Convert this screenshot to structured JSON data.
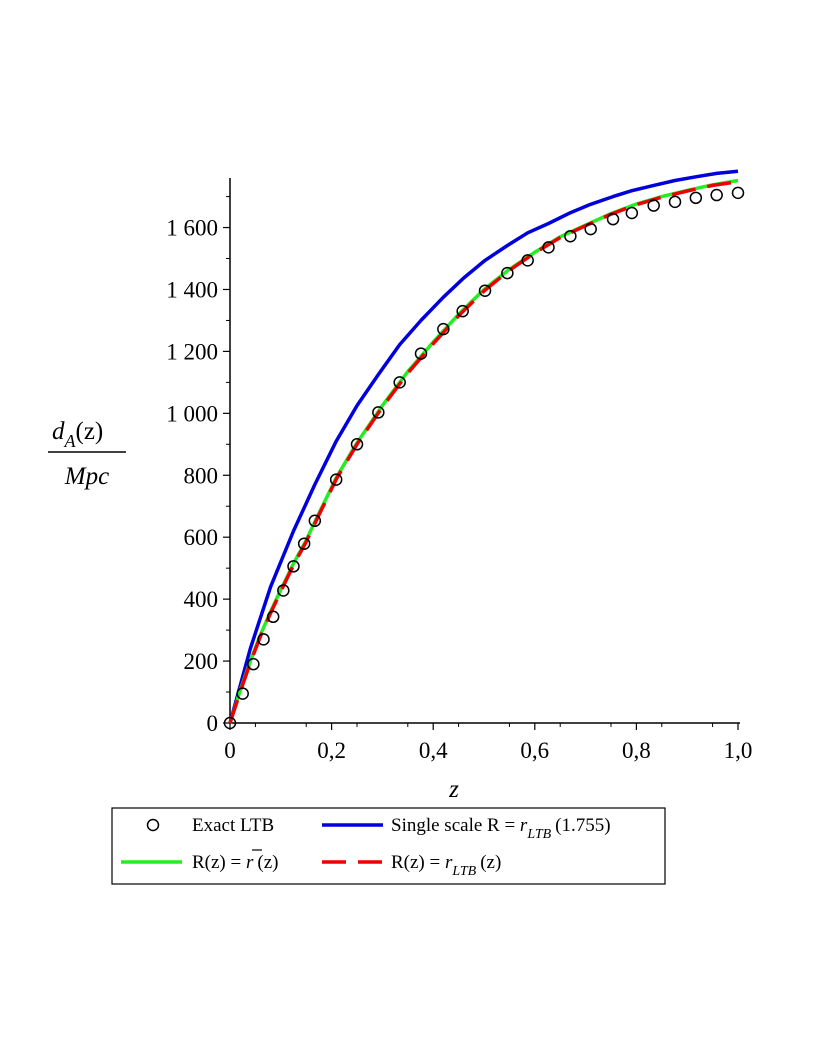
{
  "chart_data": {
    "type": "line",
    "xlabel": "z",
    "ylabel_numerator": "d",
    "ylabel_numerator_sub": "A",
    "ylabel_numerator_arg": "(z)",
    "ylabel_denominator": "Mpc",
    "xlim": [
      0,
      1.0
    ],
    "ylim": [
      0,
      1760
    ],
    "x_ticks": [
      0,
      0.2,
      0.4,
      0.6,
      0.8,
      1.0
    ],
    "x_tick_labels": [
      "0",
      "0,2",
      "0,4",
      "0,6",
      "0,8",
      "1,0"
    ],
    "y_ticks": [
      0,
      200,
      400,
      600,
      800,
      1000,
      1200,
      1400,
      1600
    ],
    "y_tick_labels": [
      "0",
      "200",
      "400",
      "600",
      "800",
      "1 000",
      "1 200",
      "1 400",
      "1 600"
    ],
    "grid": false,
    "legend_position": "bottom",
    "series": [
      {
        "name": "Exact LTB",
        "style": "circles",
        "color": "#000000",
        "x": [
          0.0,
          0.025,
          0.046,
          0.066,
          0.085,
          0.105,
          0.125,
          0.146,
          0.167,
          0.209,
          0.25,
          0.292,
          0.334,
          0.376,
          0.42,
          0.458,
          0.502,
          0.546,
          0.586,
          0.627,
          0.67,
          0.71,
          0.754,
          0.791,
          0.834,
          0.876,
          0.917,
          0.958,
          1.0
        ],
        "y": [
          0,
          95,
          190,
          270,
          343,
          428,
          506,
          579,
          653,
          786,
          900,
          1003,
          1100,
          1193,
          1272,
          1330,
          1396,
          1453,
          1494,
          1536,
          1572,
          1595,
          1627,
          1647,
          1671,
          1683,
          1696,
          1705,
          1712
        ]
      },
      {
        "name": "Single scale R = r",
        "name_sub": "LTB",
        "name_arg": "(1.755)",
        "style": "solid",
        "color": "#0000dd",
        "x": [
          0.0,
          0.04,
          0.08,
          0.125,
          0.167,
          0.209,
          0.25,
          0.292,
          0.334,
          0.376,
          0.42,
          0.46,
          0.502,
          0.546,
          0.586,
          0.627,
          0.67,
          0.71,
          0.754,
          0.791,
          0.834,
          0.876,
          0.917,
          0.958,
          1.0
        ],
        "y": [
          0,
          240,
          440,
          620,
          770,
          910,
          1025,
          1125,
          1222,
          1300,
          1375,
          1437,
          1494,
          1542,
          1583,
          1613,
          1648,
          1675,
          1700,
          1719,
          1736,
          1752,
          1764,
          1775,
          1782
        ]
      },
      {
        "name": "R(z) = r(z)",
        "style": "solid",
        "color": "#22ee22",
        "x": [
          0.0,
          0.02,
          0.04,
          0.06,
          0.08,
          0.1,
          0.125,
          0.15,
          0.17,
          0.21,
          0.25,
          0.3,
          0.35,
          0.4,
          0.45,
          0.5,
          0.55,
          0.6,
          0.65,
          0.7,
          0.75,
          0.8,
          0.85,
          0.9,
          0.95,
          1.0
        ],
        "y": [
          0,
          105,
          200,
          285,
          360,
          430,
          515,
          590,
          660,
          795,
          905,
          1025,
          1135,
          1230,
          1320,
          1400,
          1465,
          1520,
          1570,
          1608,
          1645,
          1676,
          1700,
          1720,
          1738,
          1752
        ]
      },
      {
        "name": "R(z) = r",
        "name_sub": "LTB",
        "name_arg": "(z)",
        "style": "dashed",
        "color": "#ee0000",
        "x": [
          0.0,
          0.02,
          0.04,
          0.06,
          0.08,
          0.1,
          0.125,
          0.15,
          0.17,
          0.21,
          0.25,
          0.3,
          0.35,
          0.4,
          0.45,
          0.5,
          0.55,
          0.6,
          0.65,
          0.7,
          0.75,
          0.8,
          0.85,
          0.9,
          0.95,
          1.0
        ],
        "y": [
          0,
          100,
          195,
          280,
          355,
          425,
          510,
          585,
          655,
          790,
          900,
          1020,
          1130,
          1225,
          1315,
          1395,
          1462,
          1518,
          1568,
          1606,
          1643,
          1674,
          1698,
          1718,
          1736,
          1748
        ]
      }
    ],
    "legend": {
      "row1": [
        {
          "label": "Exact LTB"
        },
        {
          "label_pre": "Single scale R = ",
          "label_var": "r",
          "label_sub": "LTB",
          "label_arg": "(1.755)"
        }
      ],
      "row2": [
        {
          "label_pre": "R(z) = ",
          "label_var": "r",
          "label_arg": "(z)"
        },
        {
          "label_pre": "R(z) = ",
          "label_var": "r",
          "label_sub": "LTB",
          "label_arg": "(z)"
        }
      ]
    }
  }
}
